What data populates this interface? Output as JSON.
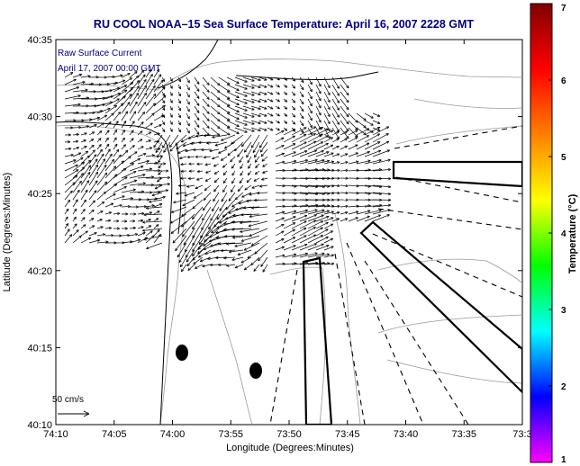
{
  "title": "RU COOL  NOAA–15  Sea Surface Temperature:  April 16, 2007 2228 GMT",
  "inset_labels": [
    "Raw Surface Current",
    "April 17, 2007 00:00 GMT"
  ],
  "scale_label": "50 cm/s",
  "x_axis": {
    "label": "Longitude (Degrees:Minutes)",
    "ticks": [
      "74:10",
      "74:05",
      "74:00",
      "73:55",
      "73:50",
      "73:45",
      "73:40",
      "73:35",
      "73:3"
    ]
  },
  "y_axis": {
    "label": "Latitude (Degrees:Minutes)",
    "ticks": [
      "40:35",
      "40:30",
      "40:25",
      "40:20",
      "40:15",
      "40:10"
    ]
  },
  "colorbar": {
    "label": "Temperature (°C)",
    "ticks": [
      "7",
      "6",
      "5",
      "4",
      "3",
      "2",
      "1"
    ],
    "range": [
      1,
      7
    ],
    "colors": [
      "#ff00ff",
      "#0000ff",
      "#00ffff",
      "#00ff00",
      "#ffff00",
      "#ff8000",
      "#ff0000",
      "#800000"
    ]
  },
  "map_colors": {
    "land": "#ffffff",
    "coast": "#000000",
    "contour": "#999999",
    "title": "#000080"
  }
}
